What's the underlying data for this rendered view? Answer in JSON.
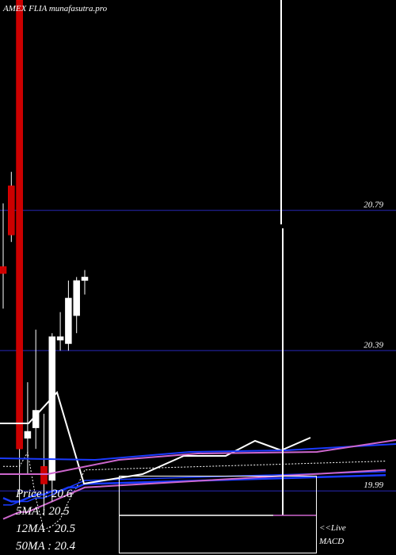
{
  "header": {
    "title": "AMEX  FLIA munafasutra.pro"
  },
  "colors": {
    "up": "#ffffff",
    "down": "#cc0000",
    "grid": "#1a1a7a",
    "ma_short": "#ffffff",
    "ma_long": "#1a3aff",
    "ma_pink": "#cc66cc"
  },
  "chart_data": {
    "type": "candlestick",
    "title": "AMEX  FLIA munafasutra.pro",
    "y_ticks": [
      20.79,
      20.39,
      19.99
    ],
    "ylim": [
      19.83,
      21.39
    ],
    "candles": [
      {
        "open": 20.63,
        "high": 20.81,
        "low": 20.51,
        "close": 20.61
      },
      {
        "open": 20.86,
        "high": 20.9,
        "low": 20.7,
        "close": 20.72
      },
      {
        "open": 21.39,
        "high": 21.39,
        "low": 19.95,
        "close": 20.11
      },
      {
        "open": 20.14,
        "high": 20.3,
        "low": 20.04,
        "close": 20.16
      },
      {
        "open": 20.17,
        "high": 20.45,
        "low": 20.11,
        "close": 20.22
      },
      {
        "open": 20.06,
        "high": 20.21,
        "low": 19.92,
        "close": 20.01
      },
      {
        "open": 20.02,
        "high": 20.44,
        "low": 19.96,
        "close": 20.43
      },
      {
        "open": 20.42,
        "high": 20.5,
        "low": 20.39,
        "close": 20.43
      },
      {
        "open": 20.41,
        "high": 20.59,
        "low": 20.39,
        "close": 20.54
      },
      {
        "open": 20.49,
        "high": 20.6,
        "low": 20.44,
        "close": 20.59
      },
      {
        "open": 20.59,
        "high": 20.62,
        "low": 20.55,
        "close": 20.6
      }
    ],
    "series": [
      {
        "values": [
          20.06,
          20.06,
          20.06,
          20.1,
          19.97,
          19.88,
          19.89,
          19.91,
          19.96,
          20.0,
          20.05
        ]
      },
      {
        "values": [
          19.97,
          19.96,
          19.96,
          19.97,
          19.98,
          19.98,
          19.99,
          19.99,
          20.0,
          20.0,
          20.01
        ]
      },
      {
        "values": [
          19.95,
          19.95,
          19.96,
          19.96,
          19.97,
          19.97,
          19.98,
          19.99,
          20.0,
          20.01,
          20.02
        ]
      },
      {
        "values": [
          19.91,
          19.92,
          19.93,
          19.93,
          19.94,
          19.95,
          19.96,
          19.97,
          19.98,
          19.99,
          20.0
        ]
      }
    ],
    "grid": true
  },
  "info": {
    "price": "Price   : 20.6",
    "ma5": "5MA : 20.5",
    "ma12": "12MA : 20.5",
    "ma50": "50MA : 20.4"
  },
  "macd": {
    "live_label": "<<Live",
    "macd_label": "MACD"
  }
}
